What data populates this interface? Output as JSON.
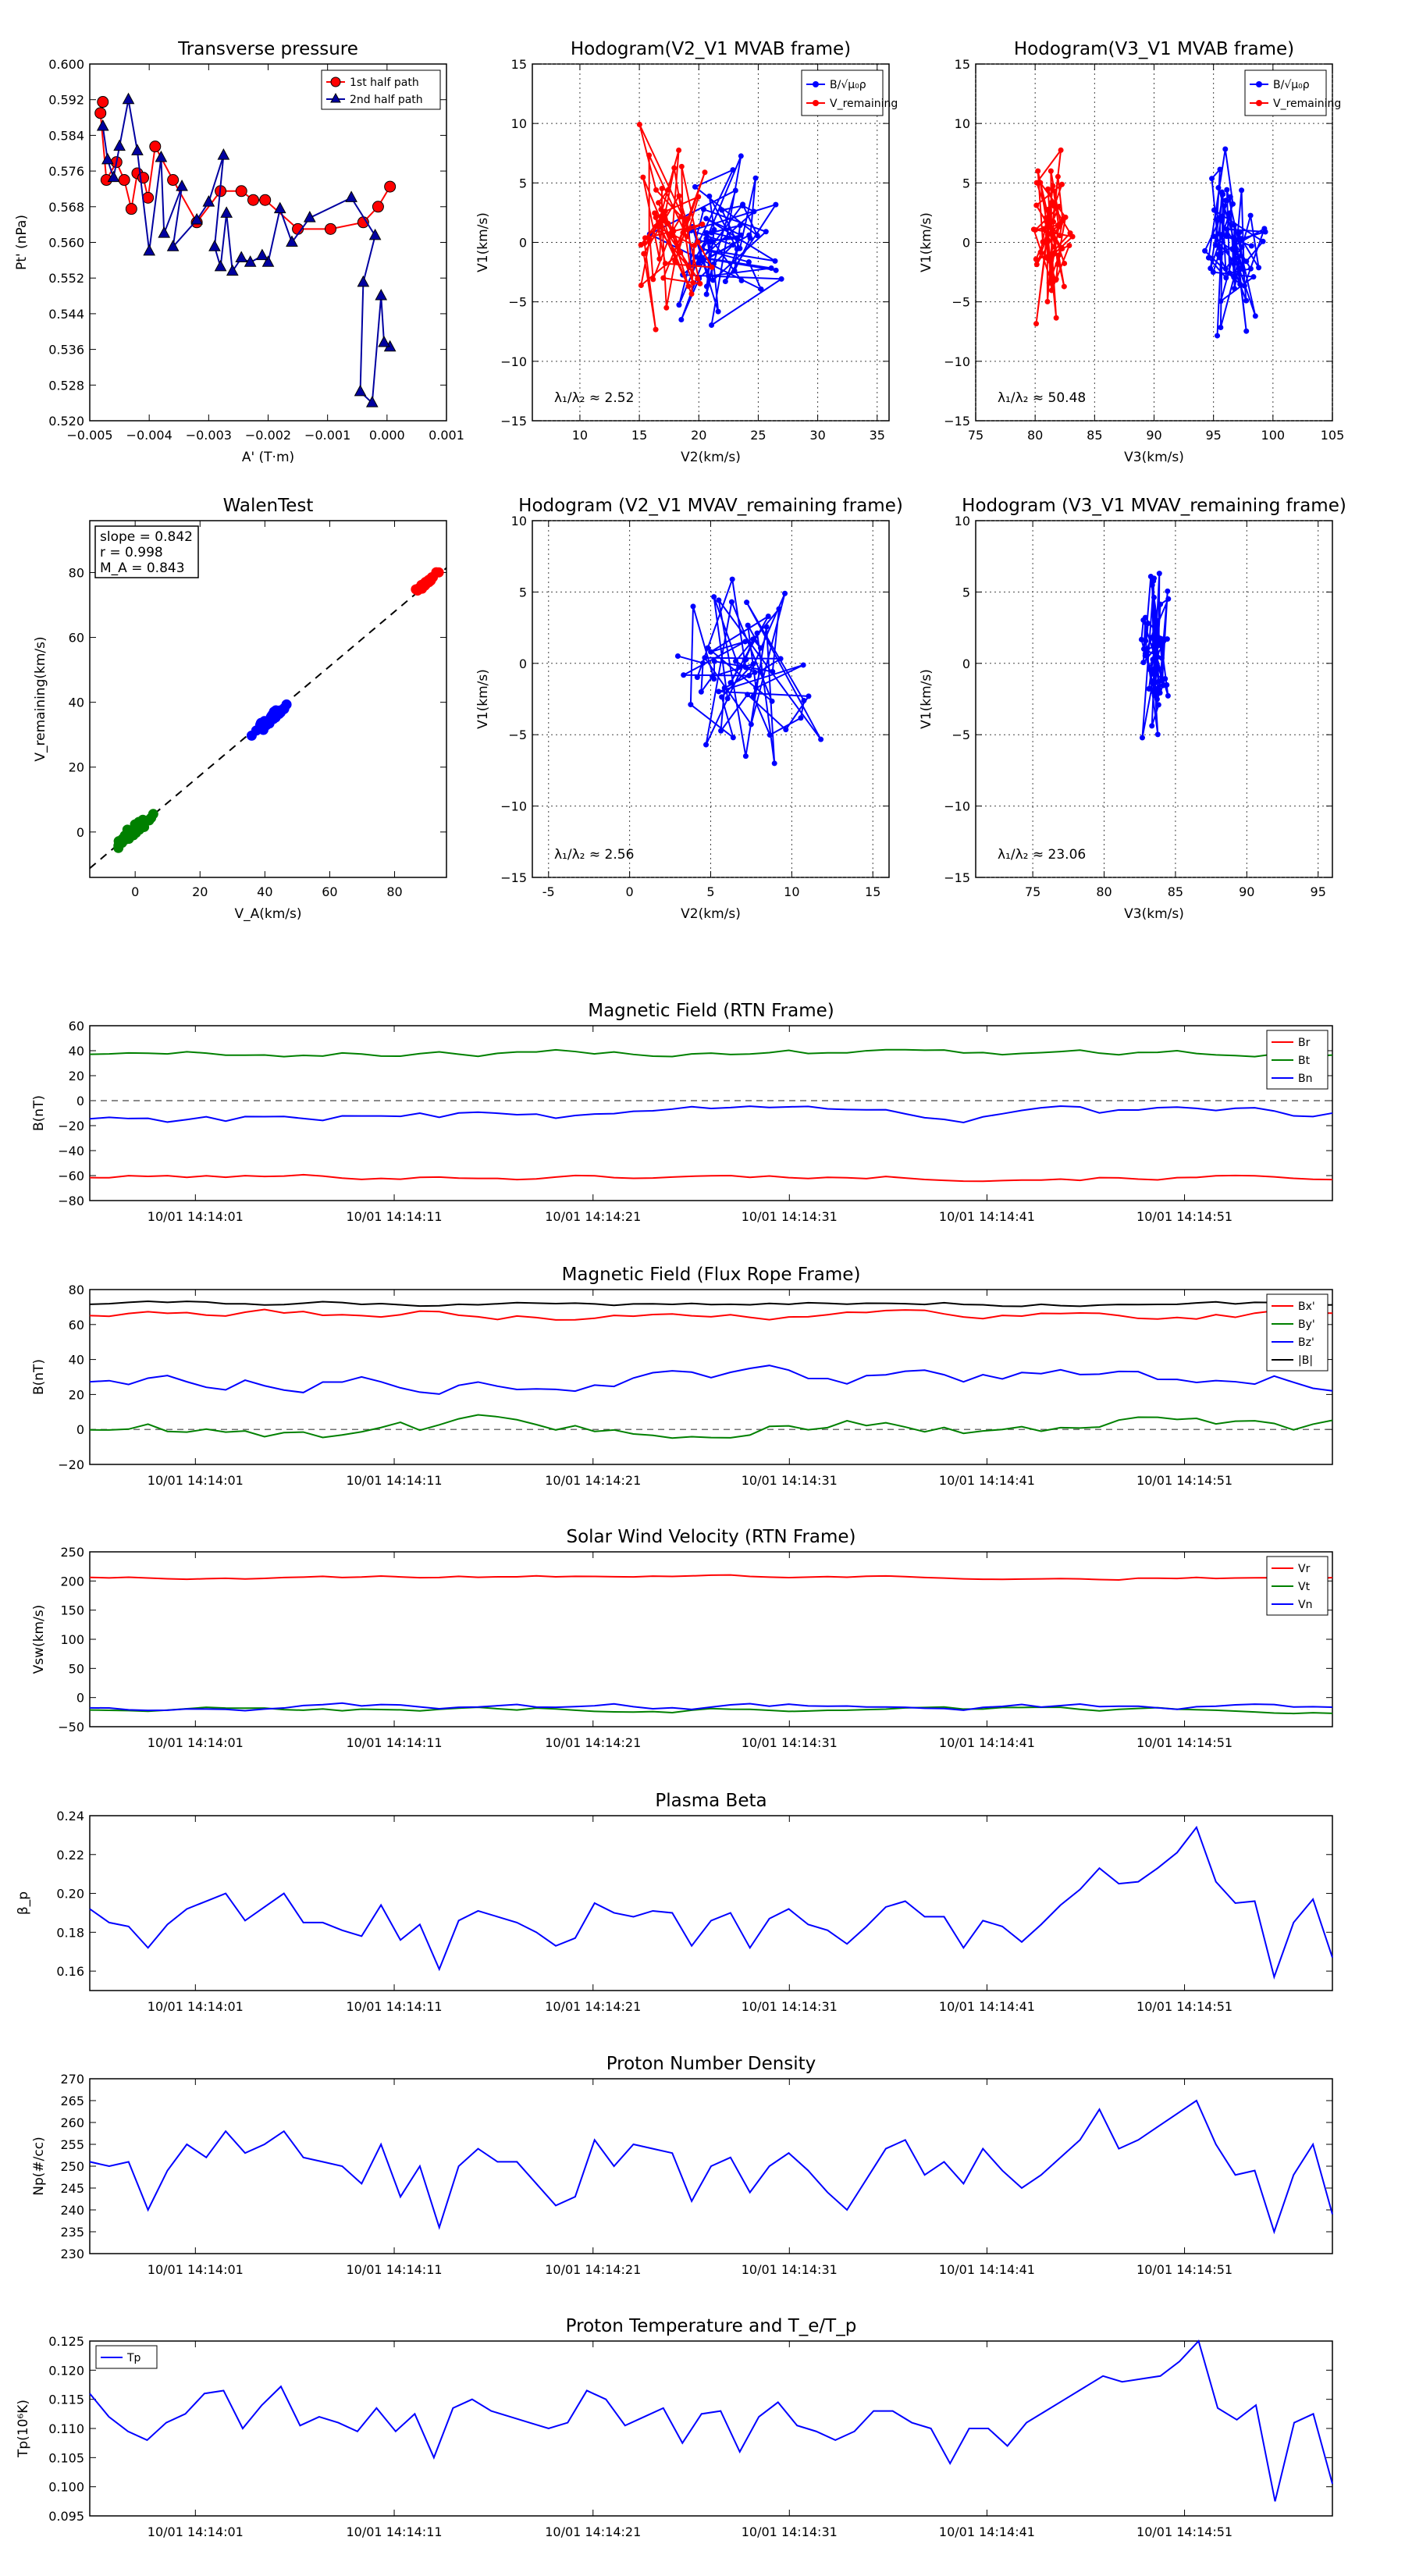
{
  "chart_data": [
    {
      "id": "tp",
      "type": "scatter",
      "title": "Transverse pressure",
      "xlabel": "A' (T·m)",
      "ylabel": "Pt' (nPa)",
      "xlim": [
        -0.005,
        0.001
      ],
      "ylim": [
        0.52,
        0.6
      ],
      "xticks": [
        -0.005,
        -0.004,
        -0.003,
        -0.002,
        -0.001,
        0.0,
        0.001
      ],
      "xtick_labels": [
        "−0.005",
        "−0.004",
        "−0.003",
        "−0.002",
        "−0.001",
        "0.000",
        "0.001"
      ],
      "yticks": [
        0.52,
        0.528,
        0.536,
        0.544,
        0.552,
        0.56,
        0.568,
        0.576,
        0.584,
        0.592,
        0.6
      ],
      "ytick_labels": [
        "0.520",
        "0.528",
        "0.536",
        "0.544",
        "0.552",
        "0.560",
        "0.568",
        "0.576",
        "0.584",
        "0.592",
        "0.600"
      ],
      "legend_position": "top-right",
      "series": [
        {
          "name": "1st half path",
          "color": "#ff0000",
          "marker": "circle",
          "points": [
            [
              -0.00478,
              0.5915
            ],
            [
              -0.00482,
              0.589
            ],
            [
              -0.00472,
              0.574
            ],
            [
              -0.00455,
              0.578
            ],
            [
              -0.00442,
              0.574
            ],
            [
              -0.0043,
              0.5675
            ],
            [
              -0.0042,
              0.5755
            ],
            [
              -0.0041,
              0.5745
            ],
            [
              -0.00402,
              0.57
            ],
            [
              -0.0039,
              0.5815
            ],
            [
              -0.0036,
              0.574
            ],
            [
              -0.0032,
              0.5645
            ],
            [
              -0.0028,
              0.5715
            ],
            [
              -0.00245,
              0.5715
            ],
            [
              -0.00225,
              0.5695
            ],
            [
              -0.00205,
              0.5695
            ],
            [
              -0.0015,
              0.563
            ],
            [
              -0.00095,
              0.563
            ],
            [
              -0.0004,
              0.5645
            ],
            [
              -0.00015,
              0.568
            ],
            [
              5e-05,
              0.5725
            ]
          ]
        },
        {
          "name": "2nd half path",
          "color": "#0000a0",
          "marker": "triangle",
          "points": [
            [
              5e-05,
              0.5365
            ],
            [
              -5e-05,
              0.5375
            ],
            [
              -0.0001,
              0.548
            ],
            [
              -0.00025,
              0.524
            ],
            [
              -0.00045,
              0.5265
            ],
            [
              -0.0004,
              0.551
            ],
            [
              -0.0002,
              0.5615
            ],
            [
              -0.0006,
              0.57
            ],
            [
              -0.0013,
              0.5655
            ],
            [
              -0.0016,
              0.56
            ],
            [
              -0.0018,
              0.5675
            ],
            [
              -0.002,
              0.5555
            ],
            [
              -0.0021,
              0.557
            ],
            [
              -0.0023,
              0.5555
            ],
            [
              -0.00245,
              0.5565
            ],
            [
              -0.0026,
              0.5535
            ],
            [
              -0.0027,
              0.5665
            ],
            [
              -0.0028,
              0.5545
            ],
            [
              -0.0029,
              0.559
            ],
            [
              -0.00275,
              0.5795
            ],
            [
              -0.003,
              0.569
            ],
            [
              -0.0032,
              0.565
            ],
            [
              -0.0036,
              0.559
            ],
            [
              -0.00345,
              0.5725
            ],
            [
              -0.00375,
              0.562
            ],
            [
              -0.0038,
              0.579
            ],
            [
              -0.004,
              0.558
            ],
            [
              -0.0042,
              0.5805
            ],
            [
              -0.00435,
              0.592
            ],
            [
              -0.0045,
              0.5815
            ],
            [
              -0.0046,
              0.5745
            ],
            [
              -0.0047,
              0.5785
            ],
            [
              -0.00478,
              0.586
            ]
          ]
        }
      ]
    },
    {
      "id": "h1",
      "type": "line",
      "title": "Hodogram(V2_V1 MVAB frame)",
      "xlabel": "V2(km/s)",
      "ylabel": "V1(km/s)",
      "xlim": [
        6,
        36
      ],
      "ylim": [
        -15,
        15
      ],
      "xticks": [
        10,
        15,
        20,
        25,
        30,
        35
      ],
      "yticks": [
        -15,
        -10,
        -5,
        0,
        5,
        10,
        15
      ],
      "legend_position": "top-right",
      "legend_entries": [
        "B/√μ₀ρ",
        "V_remaining"
      ],
      "annotation": "λ₁/λ₂ ≈ 2.52",
      "series": [
        {
          "name": "B/√μ₀ρ",
          "color": "#0000ff",
          "seed": 11,
          "n": 60,
          "cx": 22,
          "cy": 0,
          "sx": 4.2,
          "sy": 7.0
        },
        {
          "name": "V_remaining",
          "color": "#ff0000",
          "seed": 23,
          "n": 60,
          "cx": 18,
          "cy": 1,
          "sx": 3.2,
          "sy": 6.0
        }
      ]
    },
    {
      "id": "h2",
      "type": "line",
      "title": "Hodogram(V3_V1 MVAB frame)",
      "xlabel": "V3(km/s)",
      "ylabel": "V1(km/s)",
      "xlim": [
        75,
        105
      ],
      "ylim": [
        -15,
        15
      ],
      "xticks": [
        75,
        80,
        85,
        90,
        95,
        100,
        105
      ],
      "yticks": [
        -15,
        -10,
        -5,
        0,
        5,
        10,
        15
      ],
      "legend_position": "top-right",
      "legend_entries": [
        "B/√μ₀ρ",
        "V_remaining"
      ],
      "annotation": "λ₁/λ₂ ≈ 50.48",
      "series": [
        {
          "name": "B/√μ₀ρ",
          "color": "#0000ff",
          "seed": 37,
          "n": 55,
          "cx": 96.5,
          "cy": 0,
          "sx": 2.4,
          "sy": 6.5
        },
        {
          "name": "V_remaining",
          "color": "#ff0000",
          "seed": 41,
          "n": 55,
          "cx": 81.5,
          "cy": 0.5,
          "sx": 1.4,
          "sy": 6.5
        }
      ]
    },
    {
      "id": "walen",
      "type": "scatter",
      "title": "WalenTest",
      "xlabel": "V_A(km/s)",
      "ylabel": "V_remaining(km/s)",
      "xlim": [
        -14,
        96
      ],
      "ylim": [
        -14,
        96
      ],
      "xticks": [
        0,
        20,
        40,
        60,
        80
      ],
      "yticks": [
        0,
        20,
        40,
        60,
        80
      ],
      "stats": [
        "slope = 0.842",
        "r = 0.998",
        "M_A = 0.843"
      ],
      "fit": {
        "slope": 0.842,
        "intercept": 0.6
      },
      "series": [
        {
          "name": "green cluster",
          "color": "#008000",
          "seed": 5,
          "n": 45,
          "cx": 0,
          "cy": 1,
          "sx": 5,
          "sy": 4
        },
        {
          "name": "blue cluster",
          "color": "#0000ff",
          "seed": 7,
          "n": 45,
          "cx": 42,
          "cy": 35,
          "sx": 4.5,
          "sy": 3.5
        },
        {
          "name": "red cluster",
          "color": "#ff0000",
          "seed": 9,
          "n": 30,
          "cx": 90,
          "cy": 77,
          "sx": 3,
          "sy": 1.8
        }
      ]
    },
    {
      "id": "h3",
      "type": "line",
      "title": "Hodogram (V2_V1 MVAV_remaining frame)",
      "xlabel": "V2(km/s)",
      "ylabel": "V1(km/s)",
      "xlim": [
        -6,
        16
      ],
      "ylim": [
        -15,
        10
      ],
      "xticks": [
        -5,
        0,
        5,
        10,
        15
      ],
      "yticks": [
        -15,
        -10,
        -5,
        0,
        5,
        10
      ],
      "annotation": "λ₁/λ₂ ≈ 2.56",
      "series": [
        {
          "name": "V_remaining",
          "color": "#0000ff",
          "seed": 53,
          "n": 60,
          "cx": 7,
          "cy": 0,
          "sx": 3.6,
          "sy": 5.5
        }
      ]
    },
    {
      "id": "h4",
      "type": "line",
      "title": "Hodogram (V3_V1 MVAV_remaining frame)",
      "xlabel": "V3(km/s)",
      "ylabel": "V1(km/s)",
      "xlim": [
        71,
        96
      ],
      "ylim": [
        -15,
        10
      ],
      "xticks": [
        75,
        80,
        85,
        90,
        95
      ],
      "yticks": [
        -15,
        -10,
        -5,
        0,
        5,
        10
      ],
      "annotation": "λ₁/λ₂ ≈ 23.06",
      "series": [
        {
          "name": "V_remaining",
          "color": "#0000ff",
          "seed": 61,
          "n": 60,
          "cx": 83.5,
          "cy": 0,
          "sx": 1.0,
          "sy": 5.5
        }
      ]
    },
    {
      "id": "ts1",
      "type": "line",
      "title": "Magnetic Field (RTN Frame)",
      "ylabel": "B(nT)",
      "ylim": [
        -80,
        60
      ],
      "yticks": [
        -80,
        -60,
        -40,
        -20,
        0,
        20,
        40,
        60
      ],
      "xtick_labels": [
        "10/01 14:14:01",
        "10/01 14:14:11",
        "10/01 14:14:21",
        "10/01 14:14:31",
        "10/01 14:14:41",
        "10/01 14:14:51"
      ],
      "zero_line": true,
      "legend_position": "top-right",
      "series": [
        {
          "name": "Br",
          "color": "#ff0000",
          "seed": 101,
          "base": -61,
          "amp": 1.5
        },
        {
          "name": "Bt",
          "color": "#008000",
          "seed": 102,
          "base": 38,
          "amp": 2.0
        },
        {
          "name": "Bn",
          "color": "#0000ff",
          "seed": 103,
          "base": -13,
          "amp": 3.5
        }
      ]
    },
    {
      "id": "ts2",
      "type": "line",
      "title": "Magnetic Field (Flux Rope Frame)",
      "ylabel": "B(nT)",
      "ylim": [
        -20,
        80
      ],
      "yticks": [
        -20,
        0,
        20,
        40,
        60,
        80
      ],
      "xtick_labels": [
        "10/01 14:14:01",
        "10/01 14:14:11",
        "10/01 14:14:21",
        "10/01 14:14:31",
        "10/01 14:14:41",
        "10/01 14:14:51"
      ],
      "zero_line": true,
      "legend_position": "top-right",
      "series": [
        {
          "name": "Bx'",
          "color": "#ff0000",
          "seed": 111,
          "base": 66,
          "amp": 2.0
        },
        {
          "name": "By'",
          "color": "#008000",
          "seed": 112,
          "base": 1.5,
          "amp": 4.0
        },
        {
          "name": "Bz'",
          "color": "#0000ff",
          "seed": 113,
          "base": 29,
          "amp": 4.0
        },
        {
          "name": "|B|",
          "color": "#000000",
          "seed": 114,
          "base": 72,
          "amp": 1.0
        }
      ]
    },
    {
      "id": "ts3",
      "type": "line",
      "title": "Solar Wind Velocity (RTN Frame)",
      "ylabel": "Vsw(km/s)",
      "ylim": [
        -50,
        250
      ],
      "yticks": [
        -50,
        0,
        50,
        100,
        150,
        200,
        250
      ],
      "xtick_labels": [
        "10/01 14:14:01",
        "10/01 14:14:11",
        "10/01 14:14:21",
        "10/01 14:14:31",
        "10/01 14:14:41",
        "10/01 14:14:51"
      ],
      "legend_position": "top-right",
      "series": [
        {
          "name": "Vr",
          "color": "#ff0000",
          "seed": 121,
          "base": 207,
          "amp": 2.0
        },
        {
          "name": "Vt",
          "color": "#008000",
          "seed": 122,
          "base": -20,
          "amp": 3.0
        },
        {
          "name": "Vn",
          "color": "#0000ff",
          "seed": 123,
          "base": -16,
          "amp": 4.0
        }
      ]
    },
    {
      "id": "ts4",
      "type": "line",
      "title": "Plasma Beta",
      "ylabel": "β_p",
      "ylim": [
        0.15,
        0.24
      ],
      "yticks": [
        0.16,
        0.18,
        0.2,
        0.22,
        0.24
      ],
      "xtick_labels": [
        "10/01 14:14:01",
        "10/01 14:14:11",
        "10/01 14:14:21",
        "10/01 14:14:31",
        "10/01 14:14:41",
        "10/01 14:14:51"
      ],
      "series": [
        {
          "name": "beta",
          "color": "#0000ff",
          "values": [
            0.192,
            0.185,
            0.183,
            0.172,
            0.184,
            0.192,
            0.196,
            0.2,
            0.186,
            0.193,
            0.2,
            0.185,
            0.185,
            0.181,
            0.178,
            0.194,
            0.176,
            0.184,
            0.161,
            0.186,
            0.191,
            0.188,
            0.185,
            0.18,
            0.173,
            0.177,
            0.195,
            0.19,
            0.188,
            0.191,
            0.19,
            0.173,
            0.186,
            0.19,
            0.172,
            0.187,
            0.192,
            0.184,
            0.181,
            0.174,
            0.183,
            0.193,
            0.196,
            0.188,
            0.188,
            0.172,
            0.186,
            0.183,
            0.175,
            0.184,
            0.194,
            0.202,
            0.213,
            0.205,
            0.206,
            0.213,
            0.221,
            0.234,
            0.206,
            0.195,
            0.196,
            0.157,
            0.185,
            0.197,
            0.167
          ]
        }
      ]
    },
    {
      "id": "ts5",
      "type": "line",
      "title": "Proton Number Density",
      "ylabel": "Np(#/cc)",
      "ylim": [
        230,
        270
      ],
      "yticks": [
        230,
        235,
        240,
        245,
        250,
        255,
        260,
        265,
        270
      ],
      "xtick_labels": [
        "10/01 14:14:01",
        "10/01 14:14:11",
        "10/01 14:14:21",
        "10/01 14:14:31",
        "10/01 14:14:41",
        "10/01 14:14:51"
      ],
      "series": [
        {
          "name": "Np",
          "color": "#0000ff",
          "values": [
            251,
            250,
            251,
            240,
            249,
            255,
            252,
            258,
            253,
            255,
            258,
            252,
            251,
            250,
            246,
            255,
            243,
            250,
            236,
            250,
            254,
            251,
            251,
            246,
            241,
            243,
            256,
            250,
            255,
            254,
            253,
            242,
            250,
            252,
            244,
            250,
            253,
            249,
            244,
            240,
            247,
            254,
            256,
            248,
            251,
            246,
            254,
            249,
            245,
            248,
            252,
            256,
            263,
            254,
            256,
            259,
            262,
            265,
            255,
            248,
            249,
            235,
            248,
            255,
            239
          ]
        }
      ]
    },
    {
      "id": "ts6",
      "type": "line",
      "title": "Proton Temperature and T_e/T_p",
      "ylabel": "Tp(10⁶K)",
      "ylim": [
        0.095,
        0.125
      ],
      "yticks": [
        0.095,
        0.1,
        0.105,
        0.11,
        0.115,
        0.12,
        0.125
      ],
      "xtick_labels": [
        "10/01 14:14:01",
        "10/01 14:14:11",
        "10/01 14:14:21",
        "10/01 14:14:31",
        "10/01 14:14:41",
        "10/01 14:14:51"
      ],
      "legend_position": "top-left",
      "series": [
        {
          "name": "Tp",
          "color": "#0000ff",
          "values": [
            0.116,
            0.112,
            0.1095,
            0.108,
            0.111,
            0.1125,
            0.116,
            0.1165,
            0.11,
            0.114,
            0.1172,
            0.1105,
            0.112,
            0.111,
            0.1095,
            0.1135,
            0.1095,
            0.1125,
            0.105,
            0.1135,
            0.115,
            0.113,
            0.112,
            0.111,
            0.11,
            0.111,
            0.1165,
            0.115,
            0.1105,
            0.112,
            0.1135,
            0.1075,
            0.1125,
            0.113,
            0.106,
            0.112,
            0.1145,
            0.1105,
            0.1095,
            0.108,
            0.1095,
            0.113,
            0.113,
            0.111,
            0.11,
            0.104,
            0.11,
            0.11,
            0.107,
            0.111,
            0.113,
            0.115,
            0.117,
            0.119,
            0.118,
            0.1185,
            0.119,
            0.1215,
            0.125,
            0.1135,
            0.1115,
            0.114,
            0.0975,
            0.111,
            0.1125,
            0.1005
          ]
        }
      ]
    }
  ]
}
